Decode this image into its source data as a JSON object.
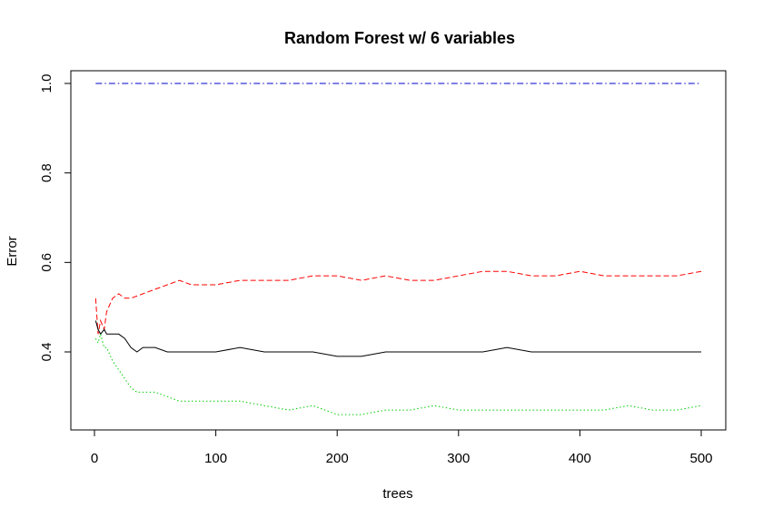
{
  "chart_data": {
    "type": "line",
    "title": "Random Forest w/ 6 variables",
    "xlabel": "trees",
    "ylabel": "Error",
    "xlim": [
      0,
      500
    ],
    "ylim": [
      0.23,
      1.03
    ],
    "x_ticks": [
      0,
      100,
      200,
      300,
      400,
      500
    ],
    "y_ticks": [
      0.4,
      0.6,
      0.8,
      1.0
    ],
    "x_tick_labels": [
      "0",
      "100",
      "200",
      "300",
      "400",
      "500"
    ],
    "y_tick_labels": [
      "0.4",
      "0.6",
      "0.8",
      "1.0"
    ],
    "grid": false,
    "series": [
      {
        "color": "#0000cc",
        "dash": "dashdot",
        "x": [
          1,
          500
        ],
        "y": [
          1.0,
          1.0
        ]
      },
      {
        "color": "#ff0000",
        "dash": "dashed",
        "x": [
          1,
          3,
          5,
          8,
          10,
          15,
          20,
          25,
          30,
          40,
          50,
          60,
          70,
          80,
          90,
          100,
          120,
          140,
          160,
          180,
          200,
          220,
          240,
          260,
          280,
          300,
          320,
          340,
          360,
          380,
          400,
          420,
          440,
          460,
          480,
          500
        ],
        "y": [
          0.52,
          0.44,
          0.47,
          0.45,
          0.49,
          0.52,
          0.53,
          0.52,
          0.52,
          0.53,
          0.54,
          0.55,
          0.56,
          0.55,
          0.55,
          0.55,
          0.56,
          0.56,
          0.56,
          0.57,
          0.57,
          0.56,
          0.57,
          0.56,
          0.56,
          0.57,
          0.58,
          0.58,
          0.57,
          0.57,
          0.58,
          0.57,
          0.57,
          0.57,
          0.57,
          0.58
        ]
      },
      {
        "color": "#000000",
        "dash": "solid",
        "x": [
          1,
          3,
          5,
          8,
          10,
          15,
          20,
          25,
          30,
          35,
          40,
          50,
          60,
          70,
          80,
          90,
          100,
          120,
          140,
          160,
          180,
          200,
          220,
          240,
          260,
          280,
          300,
          320,
          340,
          360,
          380,
          400,
          420,
          440,
          460,
          480,
          500
        ],
        "y": [
          0.47,
          0.45,
          0.44,
          0.45,
          0.44,
          0.44,
          0.44,
          0.43,
          0.41,
          0.4,
          0.41,
          0.41,
          0.4,
          0.4,
          0.4,
          0.4,
          0.4,
          0.41,
          0.4,
          0.4,
          0.4,
          0.39,
          0.39,
          0.4,
          0.4,
          0.4,
          0.4,
          0.4,
          0.41,
          0.4,
          0.4,
          0.4,
          0.4,
          0.4,
          0.4,
          0.4,
          0.4
        ]
      },
      {
        "color": "#00cc00",
        "dash": "dotted",
        "x": [
          1,
          3,
          5,
          8,
          10,
          15,
          20,
          25,
          30,
          35,
          40,
          50,
          60,
          70,
          80,
          90,
          100,
          120,
          140,
          160,
          180,
          200,
          220,
          240,
          260,
          280,
          300,
          320,
          340,
          360,
          380,
          400,
          420,
          440,
          460,
          480,
          500
        ],
        "y": [
          0.43,
          0.42,
          0.44,
          0.41,
          0.41,
          0.38,
          0.36,
          0.34,
          0.32,
          0.31,
          0.31,
          0.31,
          0.3,
          0.29,
          0.29,
          0.29,
          0.29,
          0.29,
          0.28,
          0.27,
          0.28,
          0.26,
          0.26,
          0.27,
          0.27,
          0.28,
          0.27,
          0.27,
          0.27,
          0.27,
          0.27,
          0.27,
          0.27,
          0.28,
          0.27,
          0.27,
          0.28
        ]
      }
    ]
  }
}
